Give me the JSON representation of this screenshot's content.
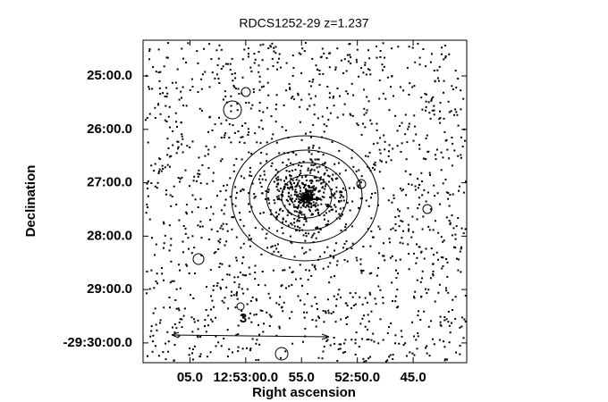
{
  "chart_data": {
    "type": "image",
    "title": "RDCS1252-29 z=1.237",
    "xlabel": "Right ascension",
    "ylabel": "Declination",
    "annotations": [
      "3"
    ],
    "xlim": [
      3189.2,
      3160.2
    ],
    "xticks": [
      {
        "value": 3185,
        "label": "05.0"
      },
      {
        "value": 3180,
        "label": "12:53:00.0"
      },
      {
        "value": 3175,
        "label": "55.0"
      },
      {
        "value": 3170,
        "label": "52:50.0"
      },
      {
        "value": 3165,
        "label": "45.0"
      }
    ],
    "ylim": [
      -1770.37,
      -1764.33
    ],
    "yticks": [
      {
        "value": -1765,
        "label": "25:00.0"
      },
      {
        "value": -1766,
        "label": "26:00.0"
      },
      {
        "value": -1767,
        "label": "27:00.0"
      },
      {
        "value": -1768,
        "label": "28:00.0"
      },
      {
        "value": -1769,
        "label": "29:00.0"
      },
      {
        "value": -1770,
        "label": "-29:30:00.0"
      }
    ]
  }
}
